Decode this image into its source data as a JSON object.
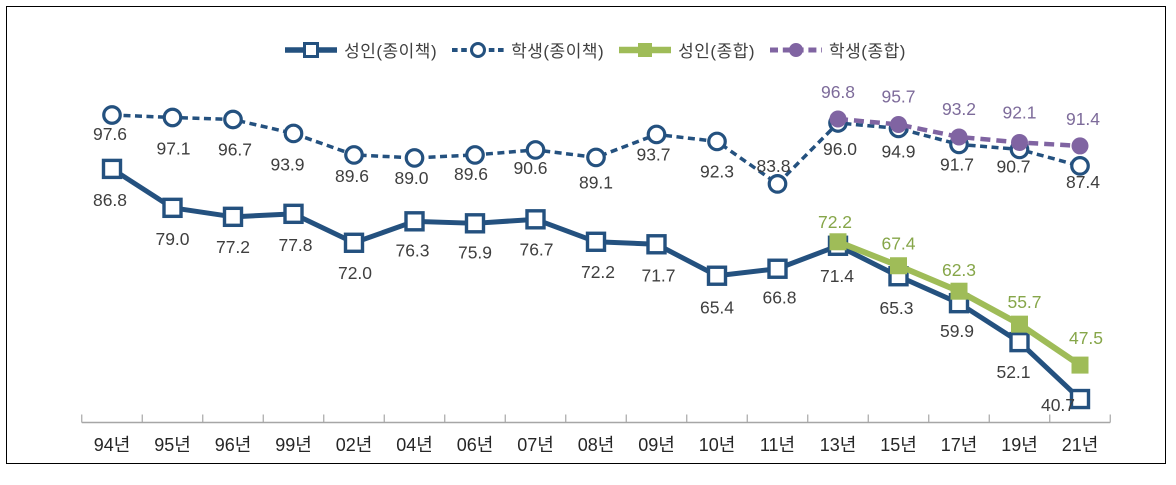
{
  "chart_data": {
    "type": "line",
    "title": "",
    "categories": [
      "94년",
      "95년",
      "96년",
      "99년",
      "02년",
      "04년",
      "06년",
      "07년",
      "08년",
      "09년",
      "10년",
      "11년",
      "13년",
      "15년",
      "17년",
      "19년",
      "21년"
    ],
    "ylim": [
      36,
      100
    ],
    "grid": false,
    "legend_position": "top",
    "axis_color": "#A6A6A6",
    "tick_label_color": "#262626",
    "series": [
      {
        "id": "adult-paper",
        "name": "성인(종이책)",
        "color": "#24517F",
        "label_color": "#3F3F3F",
        "line_style": "solid",
        "line_width": 5,
        "dash": null,
        "marker": "square",
        "marker_fill": "#FFFFFF",
        "marker_size": 17,
        "marker_stroke": 3.4,
        "values": [
          86.8,
          79.0,
          77.2,
          77.8,
          72.0,
          76.3,
          75.9,
          76.7,
          72.2,
          71.7,
          65.4,
          66.8,
          71.4,
          65.3,
          59.9,
          52.1,
          40.7
        ],
        "label_offsets": [
          [
            -2,
            31
          ],
          [
            0,
            31
          ],
          [
            0,
            30
          ],
          [
            2,
            31
          ],
          [
            1,
            30
          ],
          [
            -2,
            29
          ],
          [
            0,
            29
          ],
          [
            1,
            30
          ],
          [
            2,
            30
          ],
          [
            2,
            31
          ],
          [
            0,
            32
          ],
          [
            2,
            29
          ],
          [
            -1,
            30
          ],
          [
            -2,
            32
          ],
          [
            -2,
            28
          ],
          [
            -6,
            30
          ],
          [
            -22,
            6
          ]
        ]
      },
      {
        "id": "student-paper",
        "name": "학생(종이책)",
        "color": "#24517F",
        "label_color": "#3F3F3F",
        "line_style": "dashed",
        "line_width": 3.5,
        "dash": [
          7,
          4.5
        ],
        "marker": "circle",
        "marker_fill": "#FFFFFF",
        "marker_size": 16.5,
        "marker_stroke": 3.2,
        "values": [
          97.6,
          97.1,
          96.7,
          93.9,
          89.6,
          89.0,
          89.6,
          90.6,
          89.1,
          93.7,
          92.3,
          83.8,
          96.0,
          94.9,
          91.7,
          90.7,
          87.4
        ],
        "label_offsets": [
          [
            -2,
            19
          ],
          [
            1,
            31
          ],
          [
            2,
            30
          ],
          [
            -6,
            31
          ],
          [
            -2,
            21
          ],
          [
            -3,
            20
          ],
          [
            -4,
            19
          ],
          [
            -5,
            18
          ],
          [
            0,
            25
          ],
          [
            -3,
            20
          ],
          [
            0,
            30
          ],
          [
            -4,
            -18
          ],
          [
            2,
            26
          ],
          [
            0,
            23
          ],
          [
            -2,
            20
          ],
          [
            -6,
            17
          ],
          [
            3,
            16
          ]
        ]
      },
      {
        "id": "adult-combined",
        "name": "성인(종합)",
        "color": "#9FBC58",
        "label_color": "#86A649",
        "line_style": "solid",
        "line_width": 6,
        "dash": null,
        "marker": "square",
        "marker_fill": "#9FBC58",
        "marker_size": 16,
        "marker_stroke": 1,
        "values": [
          null,
          null,
          null,
          null,
          null,
          null,
          null,
          null,
          null,
          null,
          null,
          null,
          72.2,
          67.4,
          62.3,
          55.7,
          47.5
        ],
        "label_offsets": [
          null,
          null,
          null,
          null,
          null,
          null,
          null,
          null,
          null,
          null,
          null,
          null,
          [
            -3,
            -20
          ],
          [
            0,
            -22
          ],
          [
            0,
            -21
          ],
          [
            5,
            -22
          ],
          [
            6,
            -27
          ]
        ]
      },
      {
        "id": "student-combined",
        "name": "학생(종합)",
        "color": "#8064A2",
        "label_color": "#7D6B9A",
        "line_style": "dashed",
        "line_width": 4.5,
        "dash": [
          10,
          6
        ],
        "marker": "circle",
        "marker_fill": "#8064A2",
        "marker_size": 16,
        "marker_stroke": 1,
        "values": [
          null,
          null,
          null,
          null,
          null,
          null,
          null,
          null,
          null,
          null,
          null,
          null,
          96.8,
          95.7,
          93.2,
          92.1,
          91.4
        ],
        "label_offsets": [
          null,
          null,
          null,
          null,
          null,
          null,
          null,
          null,
          null,
          null,
          null,
          null,
          [
            0,
            -27
          ],
          [
            0,
            -28
          ],
          [
            0,
            -28
          ],
          [
            0,
            -30
          ],
          [
            3,
            -27
          ]
        ]
      }
    ]
  }
}
